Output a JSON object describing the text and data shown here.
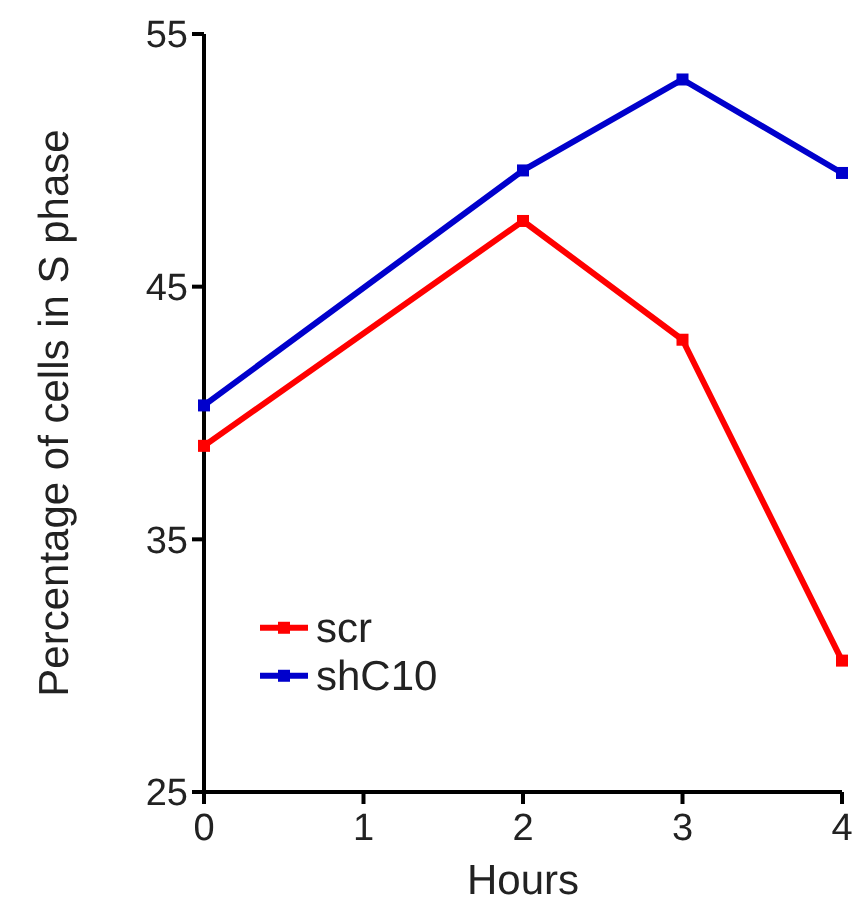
{
  "chart_data": {
    "type": "line",
    "xlabel": "Hours",
    "ylabel": "Percentage of cells in S phase",
    "x": [
      0,
      2,
      3,
      4
    ],
    "series": [
      {
        "name": "scr",
        "color": "#ff0000",
        "values": [
          38.7,
          47.6,
          42.9,
          30.2
        ]
      },
      {
        "name": "shC10",
        "color": "#0000cc",
        "values": [
          40.3,
          49.6,
          53.2,
          49.5
        ]
      }
    ],
    "xlim": [
      0,
      4
    ],
    "xticks": [
      0,
      1,
      2,
      3,
      4
    ],
    "ylim": [
      25,
      55
    ],
    "yticks": [
      25,
      35,
      45,
      55
    ],
    "grid": false,
    "legend": "bottom left",
    "marker": "square",
    "line_style": "solid"
  }
}
